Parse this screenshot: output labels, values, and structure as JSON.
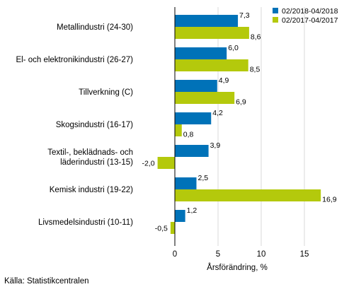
{
  "chart_data": {
    "type": "bar",
    "orientation": "horizontal",
    "categories": [
      [
        "Metallindustri (24-30)"
      ],
      [
        "El- och elektronikindustri (26-27)"
      ],
      [
        "Tillverkning (C)"
      ],
      [
        "Skogsindustri (16-17)"
      ],
      [
        "Textil-, beklädnads- och",
        "läderindustri (13-15)"
      ],
      [
        "Kemisk industri (19-22)"
      ],
      [
        "Livsmedelsindustri (10-11)"
      ]
    ],
    "series": [
      {
        "name": "02/2018-04/2018",
        "color": "#0072b8",
        "values": [
          7.3,
          6.0,
          4.9,
          4.2,
          3.9,
          2.5,
          1.2
        ],
        "labels": [
          "7,3",
          "6,0",
          "4,9",
          "4,2",
          "3,9",
          "2,5",
          "1,2"
        ]
      },
      {
        "name": "02/2017-04/2017",
        "color": "#b4c90c",
        "values": [
          8.6,
          8.5,
          6.9,
          0.8,
          -2.0,
          16.9,
          -0.5
        ],
        "labels": [
          "8,6",
          "8,5",
          "6,9",
          "0,8",
          "-2,0",
          "16,9",
          "-0,5"
        ]
      }
    ],
    "xlim": [
      -4,
      19
    ],
    "xticks": [
      0,
      5,
      10,
      15
    ],
    "xtick_labels": [
      "0",
      "5",
      "10",
      "15"
    ],
    "xlabel": "Årsförändring, %",
    "ylabel": "",
    "title": "",
    "grid": "vertical",
    "legend_position": "top-right"
  },
  "source": "Källa: Statistikcentralen"
}
